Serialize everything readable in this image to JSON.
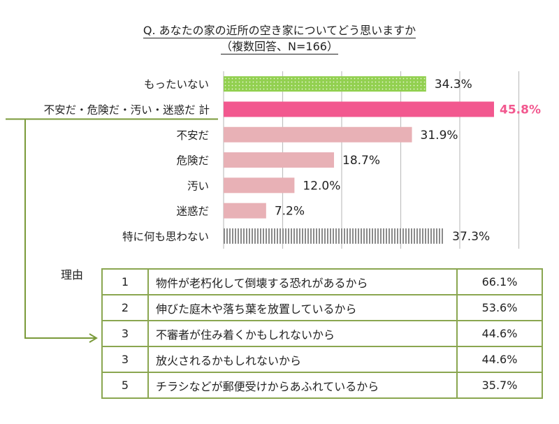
{
  "title": {
    "line1": "Q. あなたの家の近所の空き家についてどう思いますか",
    "line2": "（複数回答、N=166）"
  },
  "chart_data": {
    "type": "bar",
    "orientation": "horizontal",
    "unit": "%",
    "xlim": [
      0,
      50
    ],
    "grid": true,
    "categories": [
      "もったいない",
      "不安だ・危険だ・汚い・迷惑だ 計",
      "不安だ",
      "危険だ",
      "汚い",
      "迷惑だ",
      "特に何も思わない"
    ],
    "values": [
      34.3,
      45.8,
      31.9,
      18.7,
      12.0,
      7.2,
      37.3
    ],
    "value_labels": [
      "34.3%",
      "45.8%",
      "31.9%",
      "18.7%",
      "12.0%",
      "7.2%",
      "37.3%"
    ],
    "bar_styles": [
      "green-dots",
      "pink-solid",
      "light-pink",
      "light-pink",
      "light-pink",
      "light-pink",
      "gray-stripes"
    ],
    "colors": {
      "green": "#92d050",
      "pink": "#f2588f",
      "light_pink": "#e8b1b6",
      "gray": "#8a8a8a",
      "connector": "#7a9a3a",
      "grid": "#c0c0c0"
    }
  },
  "reasons": {
    "label": "理由",
    "rows": [
      {
        "rank": "1",
        "text": "物件が老朽化して倒壊する恐れがあるから",
        "pct": "66.1%"
      },
      {
        "rank": "2",
        "text": "伸びた庭木や落ち葉を放置しているから",
        "pct": "53.6%"
      },
      {
        "rank": "3",
        "text": "不審者が住み着くかもしれないから",
        "pct": "44.6%"
      },
      {
        "rank": "3",
        "text": "放火されるかもしれないから",
        "pct": "44.6%"
      },
      {
        "rank": "5",
        "text": "チラシなどが郵便受けからあふれているから",
        "pct": "35.7%"
      }
    ]
  }
}
